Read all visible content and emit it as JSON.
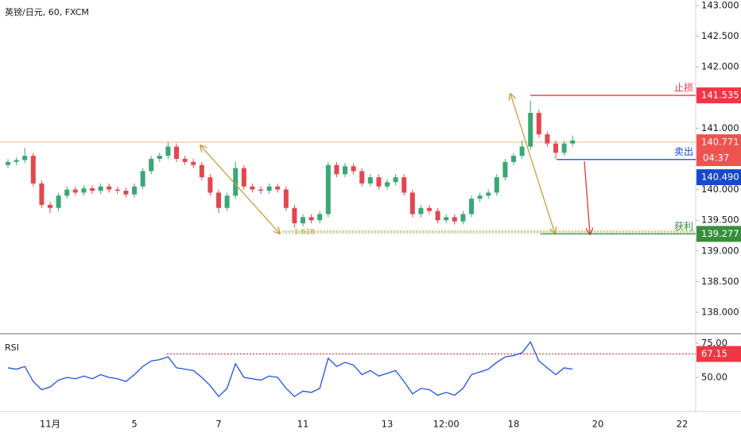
{
  "chart_data": [
    {
      "type": "candlestick",
      "title": "英镑/日元, 60, FXCM",
      "categories": [
        null,
        null,
        null,
        null,
        null,
        "11月",
        null,
        null,
        null,
        null,
        null,
        null,
        null,
        null,
        null,
        "5",
        null,
        null,
        null,
        null,
        null,
        null,
        null,
        null,
        null,
        "7",
        null,
        null,
        null,
        null,
        null,
        null,
        null,
        null,
        null,
        "11",
        null,
        null,
        null,
        null,
        null,
        null,
        null,
        null,
        null,
        "13",
        null,
        null,
        null,
        null,
        null,
        null,
        "12:00",
        null,
        null,
        null,
        null,
        null,
        null,
        null,
        "18",
        null,
        null,
        null,
        null,
        null,
        null,
        null,
        null,
        null,
        "20",
        null,
        null,
        null,
        null,
        null,
        null,
        null,
        null,
        null,
        "22",
        null
      ],
      "open": [
        140.4,
        140.45,
        140.48,
        140.55,
        140.1,
        139.75,
        139.7,
        139.9,
        140.0,
        139.95,
        140.02,
        139.98,
        140.05,
        140.0,
        139.98,
        139.92,
        140.05,
        140.3,
        140.5,
        140.55,
        140.7,
        140.5,
        140.45,
        140.4,
        140.2,
        139.95,
        139.7,
        139.9,
        140.35,
        140.05,
        140.0,
        139.98,
        140.05,
        140.0,
        139.7,
        139.45,
        139.55,
        139.5,
        139.6,
        140.4,
        140.25,
        140.38,
        140.3,
        140.1,
        140.2,
        140.05,
        140.12,
        140.2,
        139.95,
        139.6,
        139.7,
        139.65,
        139.5,
        139.55,
        139.48,
        139.6,
        139.85,
        139.9,
        139.95,
        140.2,
        140.45,
        140.55,
        140.7,
        141.25,
        140.9,
        140.75,
        140.6,
        140.75,
        null,
        null,
        null,
        null,
        null,
        null,
        null,
        null,
        null,
        null,
        null,
        null,
        null,
        null
      ],
      "high": [
        140.5,
        140.53,
        140.68,
        140.6,
        140.15,
        139.8,
        139.95,
        140.05,
        140.05,
        140.07,
        140.07,
        140.1,
        140.1,
        140.05,
        140.03,
        140.1,
        140.35,
        140.55,
        140.6,
        140.78,
        140.75,
        140.55,
        140.5,
        140.45,
        140.25,
        140.0,
        139.95,
        140.45,
        140.4,
        140.1,
        140.05,
        140.1,
        140.1,
        140.05,
        139.75,
        139.6,
        139.6,
        139.65,
        140.45,
        140.45,
        140.43,
        140.43,
        140.35,
        140.25,
        140.25,
        140.17,
        140.25,
        140.25,
        140.0,
        139.75,
        139.75,
        139.7,
        139.6,
        139.6,
        139.65,
        139.9,
        139.95,
        140.0,
        140.25,
        140.5,
        140.6,
        140.8,
        141.45,
        141.3,
        140.95,
        140.8,
        140.8,
        140.88,
        null,
        null,
        null,
        null,
        null,
        null,
        null,
        null,
        null,
        null,
        null,
        null,
        null,
        null
      ],
      "low": [
        140.35,
        140.4,
        140.43,
        140.05,
        139.7,
        139.62,
        139.65,
        139.85,
        139.9,
        139.9,
        139.93,
        139.93,
        139.95,
        139.93,
        139.87,
        139.87,
        140.0,
        140.25,
        140.45,
        140.5,
        140.45,
        140.4,
        140.35,
        140.15,
        139.9,
        139.62,
        139.65,
        139.85,
        140.0,
        139.95,
        139.93,
        139.93,
        139.95,
        139.65,
        139.38,
        139.4,
        139.45,
        139.45,
        139.55,
        140.2,
        140.2,
        140.25,
        140.05,
        140.05,
        140.0,
        140.0,
        140.07,
        139.9,
        139.55,
        139.55,
        139.6,
        139.45,
        139.45,
        139.43,
        139.43,
        139.55,
        139.8,
        139.85,
        139.9,
        140.15,
        140.4,
        140.5,
        140.65,
        140.85,
        140.7,
        140.5,
        140.55,
        140.7,
        null,
        null,
        null,
        null,
        null,
        null,
        null,
        null,
        null,
        null,
        null,
        null,
        null,
        null
      ],
      "close": [
        140.45,
        140.48,
        140.55,
        140.1,
        139.75,
        139.7,
        139.9,
        140.0,
        139.95,
        140.02,
        139.98,
        140.05,
        140.0,
        139.98,
        139.92,
        140.05,
        140.3,
        140.5,
        140.55,
        140.7,
        140.5,
        140.45,
        140.4,
        140.2,
        139.95,
        139.7,
        139.9,
        140.35,
        140.05,
        140.0,
        139.98,
        140.05,
        140.0,
        139.7,
        139.45,
        139.55,
        139.5,
        139.6,
        140.4,
        140.25,
        140.38,
        140.3,
        140.1,
        140.2,
        140.05,
        140.12,
        140.2,
        139.95,
        139.6,
        139.7,
        139.65,
        139.5,
        139.55,
        139.48,
        139.6,
        139.85,
        139.9,
        139.95,
        140.2,
        140.45,
        140.55,
        140.7,
        141.25,
        140.9,
        140.75,
        140.6,
        140.75,
        140.8,
        null,
        null,
        null,
        null,
        null,
        null,
        null,
        null,
        null,
        null,
        null,
        null,
        null,
        null
      ],
      "up_color": "#3ba776",
      "down_color": "#e3474f",
      "ylim": [
        137.65,
        143.09
      ],
      "yticks": [
        {
          "value": 138,
          "label": "138.000"
        },
        {
          "value": 138.5,
          "label": "138.500"
        },
        {
          "value": 139,
          "label": "139.000"
        },
        {
          "value": 139.5,
          "label": "139.500"
        },
        {
          "value": 140,
          "label": "140.000"
        },
        {
          "value": 140.5,
          "label": "140.500"
        },
        {
          "value": 141,
          "label": "141.000"
        },
        {
          "value": 141.5,
          "label": "141.500"
        },
        {
          "value": 142,
          "label": "142.000"
        },
        {
          "value": 142.5,
          "label": "142.500"
        },
        {
          "value": 143,
          "label": "143.000"
        }
      ],
      "grid": false,
      "last_price": {
        "value": 140.771,
        "countdown": "04:37",
        "color": "#ef5350"
      },
      "levels": [
        {
          "name": "止损",
          "value": 141.535,
          "color": "#f23645"
        },
        {
          "name": "卖出",
          "value": 140.49,
          "label": "140.490",
          "color": "#1848cc"
        },
        {
          "name": "获利",
          "value": 139.277,
          "color": "#388e3c"
        }
      ],
      "fib": {
        "name": "1.618",
        "value": 139.31,
        "color": "#c8a040"
      }
    },
    {
      "type": "line",
      "title": "RSI",
      "values": [
        57,
        56,
        58,
        47,
        41,
        43,
        48,
        50,
        49,
        51,
        49,
        52,
        50,
        49,
        47,
        52,
        58,
        62,
        63,
        65,
        57,
        56,
        55,
        50,
        44,
        36,
        42,
        60,
        50,
        49,
        48,
        51,
        50,
        42,
        36,
        40,
        39,
        42,
        64,
        58,
        61,
        59,
        52,
        55,
        51,
        53,
        55,
        47,
        38,
        42,
        41,
        37,
        39,
        37,
        42,
        52,
        54,
        56,
        61,
        65,
        66,
        68,
        76,
        62,
        57,
        52,
        57,
        56,
        null,
        null,
        null,
        null,
        null,
        null,
        null,
        null,
        null,
        null,
        null,
        null,
        null,
        null
      ],
      "color": "#1e53e5",
      "ylim": [
        25,
        80.8
      ],
      "yticks": [
        {
          "value": 75,
          "label": "75.00"
        },
        {
          "value": 50,
          "label": "50.00"
        }
      ],
      "level": {
        "value": 67.15,
        "color": "#f23645"
      }
    }
  ]
}
